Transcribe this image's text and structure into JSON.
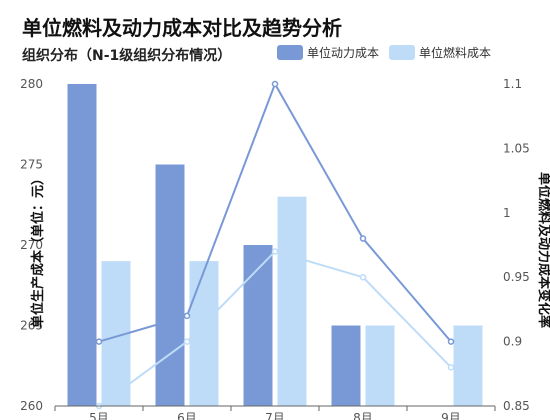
{
  "chart_data": {
    "type": "bar",
    "title": "单位燃料及动力成本对比及趋势分析",
    "subtitle": "组织分布（N-1级组织分布情况）",
    "categories": [
      "5月",
      "6月",
      "7月",
      "8月",
      "9月"
    ],
    "ylabel_left": "单位生产成本（单位：元）",
    "ylabel_right": "单位燃料及动力成本变化率",
    "ylim_left": [
      260,
      280
    ],
    "yticks_left": [
      260,
      265,
      270,
      275,
      280
    ],
    "ylim_right": [
      0.85,
      1.1
    ],
    "yticks_right": [
      "0.85",
      "0.9",
      "0.95",
      "1",
      "1.05",
      "1.1"
    ],
    "legend_position": "top-right",
    "series": [
      {
        "name": "单位动力成本",
        "kind": "bar",
        "axis": "left",
        "color": "#7898d6",
        "values": [
          280,
          275,
          270,
          265,
          null
        ]
      },
      {
        "name": "单位燃料成本",
        "kind": "bar",
        "axis": "left",
        "color": "#bedcf8",
        "values": [
          269,
          269,
          273,
          265,
          265
        ]
      },
      {
        "kind": "line",
        "axis": "right",
        "color": "#7898d6",
        "values": [
          0.9,
          0.92,
          1.1,
          0.98,
          0.9
        ]
      },
      {
        "kind": "line",
        "axis": "right",
        "color": "#bedcf8",
        "values": [
          0.85,
          0.9,
          0.97,
          0.95,
          0.88
        ]
      }
    ]
  }
}
